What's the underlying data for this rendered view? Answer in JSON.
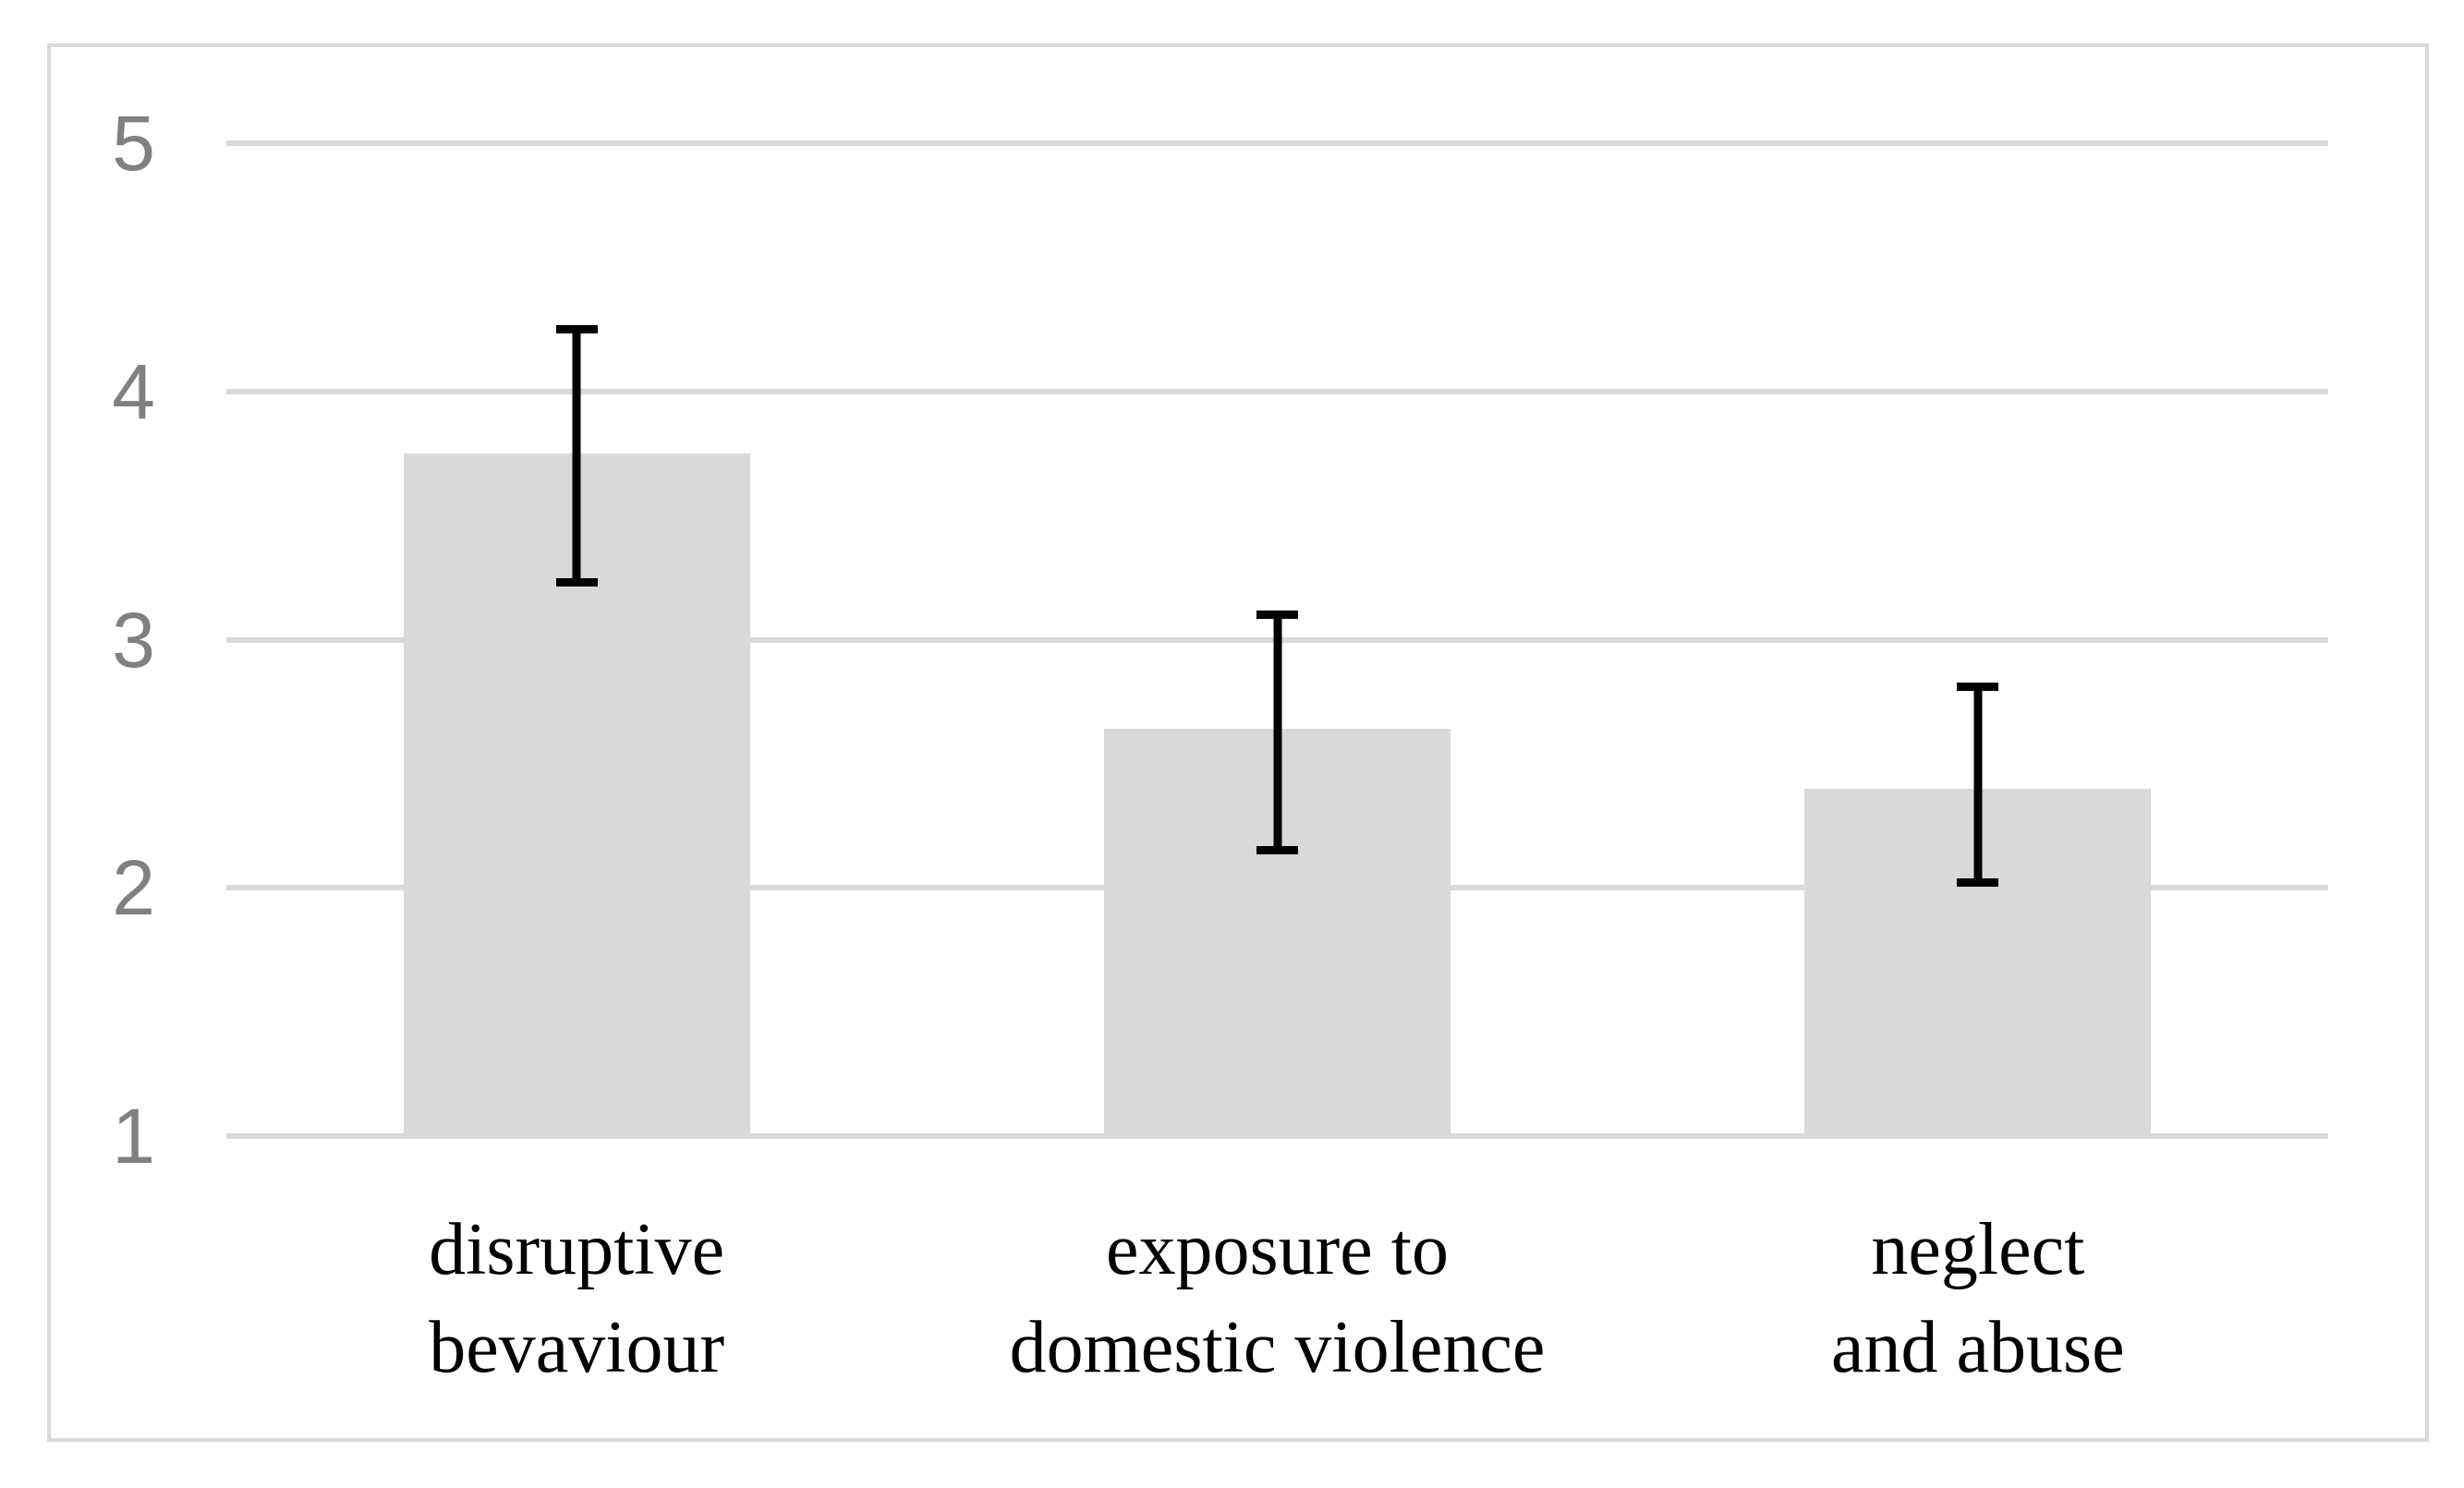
{
  "figure": {
    "background": "#ffffff",
    "frame_color": "#d9d9d9"
  },
  "chart_data": {
    "type": "bar",
    "title": "",
    "xlabel": "",
    "ylabel": "",
    "categories": [
      "disruptive bevaviour",
      "exposure to domestic violence",
      "neglect and abuse"
    ],
    "category_label_lines": [
      [
        "disruptive",
        "bevaviour"
      ],
      [
        "exposure to",
        "domestic violence"
      ],
      [
        "neglect",
        "and abuse"
      ]
    ],
    "values": [
      3.75,
      2.64,
      2.4
    ],
    "error_bars": [
      {
        "category": "disruptive bevaviour",
        "lower": 3.23,
        "upper": 4.25
      },
      {
        "category": "exposure to domestic violence",
        "lower": 2.15,
        "upper": 3.1
      },
      {
        "category": "neglect and abuse",
        "lower": 2.02,
        "upper": 2.81
      }
    ],
    "ylim": [
      1,
      5
    ],
    "yticks": [
      "1",
      "2",
      "3",
      "4",
      "5"
    ],
    "grid": "horizontal",
    "legend": "none",
    "bar_color": "#d9d9d9",
    "gridline_color": "#d9d9d9",
    "tick_label_color": "#808080",
    "category_label_color": "#000000",
    "error_bar_color": "#000000"
  }
}
